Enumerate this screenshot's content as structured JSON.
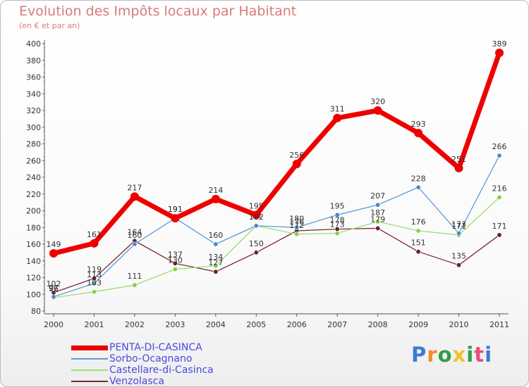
{
  "chart_data": {
    "type": "line",
    "title": "Evolution des Impôts locaux par Habitant",
    "subtitle": "(en € et par an)",
    "categories": [
      "2000",
      "2001",
      "2002",
      "2003",
      "2004",
      "2005",
      "2006",
      "2007",
      "2008",
      "2009",
      "2010",
      "2011"
    ],
    "ylim": [
      80,
      400
    ],
    "yticks": [
      80,
      100,
      120,
      140,
      160,
      180,
      200,
      220,
      240,
      260,
      280,
      300,
      320,
      340,
      360,
      380,
      400
    ],
    "series": [
      {
        "name": "PENTA-DI-CASINCA",
        "color": "#ee0000",
        "values": [
          149,
          161,
          217,
          191,
          214,
          195,
          256,
          311,
          320,
          293,
          251,
          389
        ]
      },
      {
        "name": "Sorbo-Ocagnano",
        "color": "#5b9bd5",
        "values": [
          97,
          113,
          160,
          191,
          160,
          182,
          180,
          195,
          207,
          228,
          173,
          266
        ]
      },
      {
        "name": "Castellare-di-Casinca",
        "color": "#99e06f",
        "values": [
          96,
          103,
          111,
          130,
          134,
          182,
          172,
          173,
          187,
          176,
          171,
          216
        ]
      },
      {
        "name": "Venzolasca",
        "color": "#7b2a36",
        "values": [
          102,
          119,
          164,
          137,
          127,
          150,
          176,
          178,
          179,
          151,
          135,
          171
        ]
      }
    ]
  },
  "logo": {
    "text": "Proxiti"
  }
}
